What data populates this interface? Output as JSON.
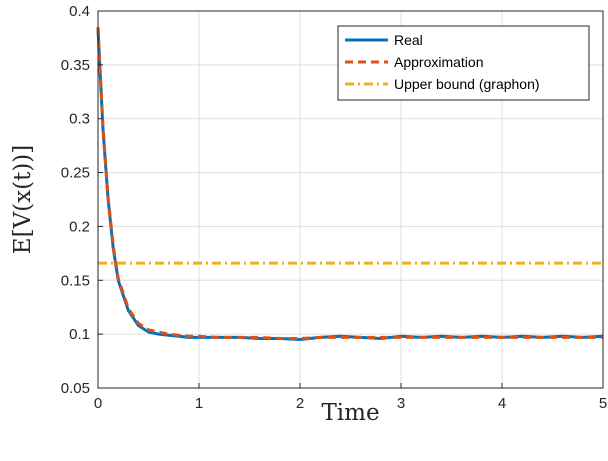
{
  "chart_data": {
    "type": "line",
    "xlabel": "Time",
    "ylabel": "E[V(x(t))]",
    "xlim": [
      0,
      5
    ],
    "ylim": [
      0.05,
      0.4
    ],
    "xticks": [
      "0",
      "1",
      "2",
      "3",
      "4",
      "5"
    ],
    "yticks": [
      "0.05",
      "0.1",
      "0.15",
      "0.2",
      "0.25",
      "0.3",
      "0.35",
      "0.4"
    ],
    "grid": true,
    "legend_position": "top-right",
    "series": [
      {
        "name": "Real",
        "style": "solid",
        "color": "#0072BD",
        "x": [
          0,
          0.05,
          0.1,
          0.15,
          0.2,
          0.3,
          0.4,
          0.5,
          0.6,
          0.7,
          0.8,
          0.9,
          1.0,
          1.2,
          1.4,
          1.6,
          1.8,
          2.0,
          2.2,
          2.4,
          2.6,
          2.8,
          3.0,
          3.2,
          3.4,
          3.6,
          3.8,
          4.0,
          4.2,
          4.4,
          4.6,
          4.8,
          5.0
        ],
        "y": [
          0.383,
          0.29,
          0.225,
          0.18,
          0.15,
          0.122,
          0.108,
          0.102,
          0.1,
          0.099,
          0.098,
          0.097,
          0.097,
          0.097,
          0.097,
          0.096,
          0.096,
          0.095,
          0.097,
          0.098,
          0.097,
          0.096,
          0.098,
          0.097,
          0.098,
          0.097,
          0.098,
          0.097,
          0.098,
          0.097,
          0.098,
          0.097,
          0.098
        ]
      },
      {
        "name": "Approximation",
        "style": "dashed",
        "color": "#D95319",
        "x": [
          0,
          0.05,
          0.1,
          0.15,
          0.2,
          0.3,
          0.4,
          0.5,
          0.6,
          0.7,
          0.8,
          0.9,
          1.0,
          1.2,
          1.4,
          1.6,
          1.8,
          2.0,
          2.2,
          2.4,
          2.6,
          2.8,
          3.0,
          3.2,
          3.4,
          3.6,
          3.8,
          4.0,
          4.2,
          4.4,
          4.6,
          4.8,
          5.0
        ],
        "y": [
          0.385,
          0.292,
          0.227,
          0.182,
          0.152,
          0.124,
          0.11,
          0.104,
          0.102,
          0.1,
          0.099,
          0.098,
          0.098,
          0.097,
          0.097,
          0.097,
          0.096,
          0.096,
          0.097,
          0.097,
          0.097,
          0.097,
          0.097,
          0.097,
          0.097,
          0.097,
          0.097,
          0.097,
          0.097,
          0.097,
          0.097,
          0.097,
          0.097
        ]
      },
      {
        "name": "Upper bound (graphon)",
        "style": "dashdot",
        "color": "#EDB120",
        "x": [
          0,
          5
        ],
        "y": [
          0.166,
          0.166
        ]
      }
    ]
  }
}
